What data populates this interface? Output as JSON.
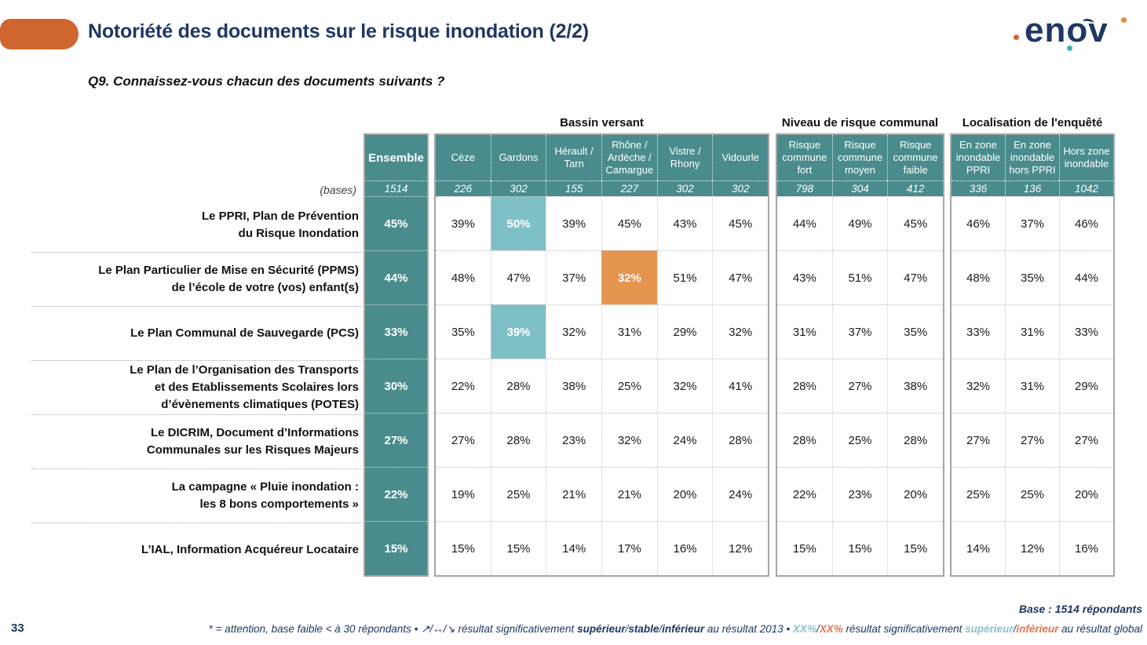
{
  "slide": {
    "title": "Notoriété des documents sur le risque inondation (2/2)",
    "question": "Q9. Connaissez-vous chacun des documents suivants ?",
    "page_number": "33",
    "logo_text": "enov"
  },
  "colors": {
    "accent_orange": "#D0662F",
    "header_teal": "#4A8C8E",
    "highlight_teal": "#7FC0C6",
    "highlight_orange": "#E6954F",
    "title_navy": "#1F3864"
  },
  "table": {
    "bases_label": "(bases)",
    "ensemble": {
      "label": "Ensemble",
      "base": "1514"
    },
    "groups": {
      "bassin": {
        "title": "Bassin versant",
        "columns": [
          {
            "label": "Cèze",
            "base": "226"
          },
          {
            "label": "Gardons",
            "base": "302"
          },
          {
            "label": "Hérault / Tarn",
            "base": "155"
          },
          {
            "label": "Rhône / Ardèche / Camargue",
            "base": "227"
          },
          {
            "label": "Vistre / Rhony",
            "base": "302"
          },
          {
            "label": "Vidourle",
            "base": "302"
          }
        ]
      },
      "risque": {
        "title": "Niveau de risque communal",
        "columns": [
          {
            "label": "Risque commune fort",
            "base": "798"
          },
          {
            "label": "Risque commune moyen",
            "base": "304"
          },
          {
            "label": "Risque commune faible",
            "base": "412"
          }
        ]
      },
      "localisation": {
        "title": "Localisation de l'enquêté",
        "columns": [
          {
            "label": "En zone inondable PPRI",
            "base": "336"
          },
          {
            "label": "En zone inondable hors PPRI",
            "base": "136"
          },
          {
            "label": "Hors zone inondable",
            "base": "1042"
          }
        ]
      }
    },
    "rows": [
      {
        "label": "Le PPRI, Plan de Prévention\ndu Risque Inondation",
        "ensemble": "45%",
        "bassin": [
          "39%",
          "50%",
          "39%",
          "45%",
          "43%",
          "45%"
        ],
        "risque": [
          "44%",
          "49%",
          "45%"
        ],
        "localisation": [
          "46%",
          "37%",
          "46%"
        ]
      },
      {
        "label": "Le Plan Particulier de Mise en Sécurité (PPMS)\nde l’école de votre (vos) enfant(s)",
        "ensemble": "44%",
        "bassin": [
          "48%",
          "47%",
          "37%",
          "32%",
          "51%",
          "47%"
        ],
        "risque": [
          "43%",
          "51%",
          "47%"
        ],
        "localisation": [
          "48%",
          "35%",
          "44%"
        ]
      },
      {
        "label": "Le Plan Communal de Sauvegarde (PCS)",
        "ensemble": "33%",
        "bassin": [
          "35%",
          "39%",
          "32%",
          "31%",
          "29%",
          "32%"
        ],
        "risque": [
          "31%",
          "37%",
          "35%"
        ],
        "localisation": [
          "33%",
          "31%",
          "33%"
        ]
      },
      {
        "label": "Le Plan de l’Organisation des Transports\net des Etablissements Scolaires lors\nd’évènements climatiques (POTES)",
        "ensemble": "30%",
        "bassin": [
          "22%",
          "28%",
          "38%",
          "25%",
          "32%",
          "41%"
        ],
        "risque": [
          "28%",
          "27%",
          "38%"
        ],
        "localisation": [
          "32%",
          "31%",
          "29%"
        ]
      },
      {
        "label": "Le DICRIM, Document d’Informations\nCommunales sur les Risques Majeurs",
        "ensemble": "27%",
        "bassin": [
          "27%",
          "28%",
          "23%",
          "32%",
          "24%",
          "28%"
        ],
        "risque": [
          "28%",
          "25%",
          "28%"
        ],
        "localisation": [
          "27%",
          "27%",
          "27%"
        ]
      },
      {
        "label": "La campagne « Pluie inondation :\nles 8 bons comportements »",
        "ensemble": "22%",
        "bassin": [
          "19%",
          "25%",
          "21%",
          "21%",
          "20%",
          "24%"
        ],
        "risque": [
          "22%",
          "23%",
          "20%"
        ],
        "localisation": [
          "25%",
          "25%",
          "20%"
        ]
      },
      {
        "label": "L’IAL, Information Acquéreur Locataire",
        "ensemble": "15%",
        "bassin": [
          "15%",
          "15%",
          "14%",
          "17%",
          "16%",
          "12%"
        ],
        "risque": [
          "15%",
          "15%",
          "15%"
        ],
        "localisation": [
          "14%",
          "12%",
          "16%"
        ]
      }
    ],
    "highlighted_cells": [
      {
        "row": 0,
        "group": "bassin",
        "col": 1,
        "color": "teal"
      },
      {
        "row": 1,
        "group": "bassin",
        "col": 3,
        "color": "orange"
      },
      {
        "row": 2,
        "group": "bassin",
        "col": 1,
        "color": "teal"
      }
    ]
  },
  "footer": {
    "base_note": "Base : 1514 répondants",
    "legend": [
      {
        "text": "* = attention, base faible < à 30 répondants • "
      },
      {
        "text": "↗/↔/↘ "
      },
      {
        "text": "résultat significativement "
      },
      {
        "text": "supérieur"
      },
      {
        "text": "/"
      },
      {
        "text": "stable"
      },
      {
        "text": "/"
      },
      {
        "text": "inférieur"
      },
      {
        "text": " au résultat 2013 • "
      },
      {
        "text": "XX%"
      },
      {
        "text": "/"
      },
      {
        "text": "XX%"
      },
      {
        "text": " résultat significativement "
      },
      {
        "text": "supérieur"
      },
      {
        "text": "/"
      },
      {
        "text": "inférieur"
      },
      {
        "text": " au résultat global"
      }
    ]
  }
}
